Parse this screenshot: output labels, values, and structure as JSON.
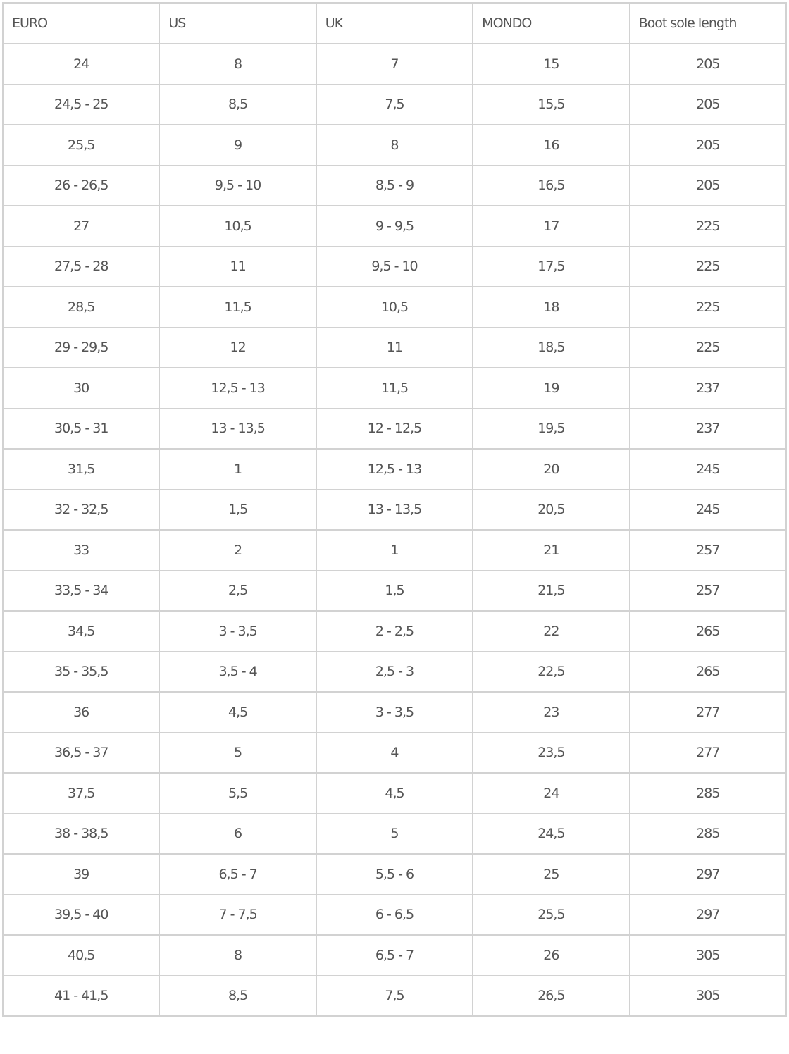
{
  "table": {
    "headers": [
      "EURO",
      "US",
      "UK",
      "MONDO",
      "Boot sole length"
    ],
    "rows": [
      [
        "24",
        "8",
        "7",
        "15",
        "205"
      ],
      [
        "24,5 - 25",
        "8,5",
        "7,5",
        "15,5",
        "205"
      ],
      [
        "25,5",
        "9",
        "8",
        "16",
        "205"
      ],
      [
        "26 - 26,5",
        "9,5 - 10",
        "8,5 - 9",
        "16,5",
        "205"
      ],
      [
        "27",
        "10,5",
        "9 - 9,5",
        "17",
        "225"
      ],
      [
        "27,5 - 28",
        "11",
        "9,5 - 10",
        "17,5",
        "225"
      ],
      [
        "28,5",
        "11,5",
        "10,5",
        "18",
        "225"
      ],
      [
        "29 - 29,5",
        "12",
        "11",
        "18,5",
        "225"
      ],
      [
        "30",
        "12,5 - 13",
        "11,5",
        "19",
        "237"
      ],
      [
        "30,5 - 31",
        "13 - 13,5",
        "12 - 12,5",
        "19,5",
        "237"
      ],
      [
        "31,5",
        "1",
        "12,5 - 13",
        "20",
        "245"
      ],
      [
        "32 - 32,5",
        "1,5",
        "13 - 13,5",
        "20,5",
        "245"
      ],
      [
        "33",
        "2",
        "1",
        "21",
        "257"
      ],
      [
        "33,5 - 34",
        "2,5",
        "1,5",
        "21,5",
        "257"
      ],
      [
        "34,5",
        "3 - 3,5",
        "2 - 2,5",
        "22",
        "265"
      ],
      [
        "35 - 35,5",
        "3,5 - 4",
        "2,5 - 3",
        "22,5",
        "265"
      ],
      [
        "36",
        "4,5",
        "3 - 3,5",
        "23",
        "277"
      ],
      [
        "36,5 - 37",
        "5",
        "4",
        "23,5",
        "277"
      ],
      [
        "37,5",
        "5,5",
        "4,5",
        "24",
        "285"
      ],
      [
        "38 - 38,5",
        "6",
        "5",
        "24,5",
        "285"
      ],
      [
        "39",
        "6,5 - 7",
        "5,5 - 6",
        "25",
        "297"
      ],
      [
        "39,5 - 40",
        "7 - 7,5",
        "6 - 6,5",
        "25,5",
        "297"
      ],
      [
        "40,5",
        "8",
        "6,5 - 7",
        "26",
        "305"
      ],
      [
        "41 - 41,5",
        "8,5",
        "7,5",
        "26,5",
        "305"
      ]
    ]
  }
}
